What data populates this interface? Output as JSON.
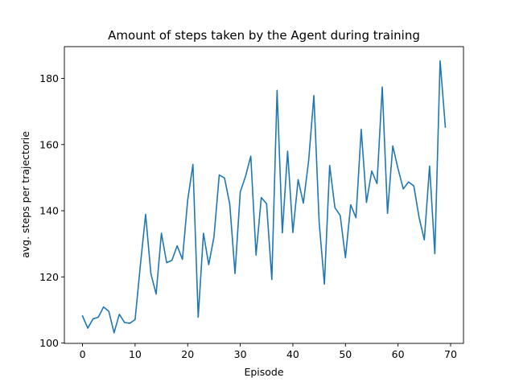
{
  "chart_data": {
    "type": "line",
    "title": "Amount of steps taken by the Agent during training",
    "xlabel": "Episode",
    "ylabel": "avg. steps per trajectorie",
    "xlim": [
      -3.45,
      72.45
    ],
    "ylim": [
      99.9,
      189.6
    ],
    "xticks": [
      0,
      10,
      20,
      30,
      40,
      50,
      60,
      70
    ],
    "yticks": [
      100,
      120,
      140,
      160,
      180
    ],
    "grid": false,
    "series": [
      {
        "name": "steps",
        "color": "#1f77b4",
        "x": [
          0,
          1,
          2,
          3,
          4,
          5,
          6,
          7,
          8,
          9,
          10,
          11,
          12,
          13,
          14,
          15,
          16,
          17,
          18,
          19,
          20,
          21,
          22,
          23,
          24,
          25,
          26,
          27,
          28,
          29,
          30,
          31,
          32,
          33,
          34,
          35,
          36,
          37,
          38,
          39,
          40,
          41,
          42,
          43,
          44,
          45,
          46,
          47,
          48,
          49,
          50,
          51,
          52,
          53,
          54,
          55,
          56,
          57,
          58,
          59,
          60,
          61,
          62,
          63,
          64,
          65,
          66,
          67,
          68,
          69
        ],
        "values": [
          108.2,
          104.5,
          107.3,
          107.8,
          110.9,
          109.6,
          103.1,
          108.7,
          106.2,
          106.0,
          107.1,
          123.5,
          138.9,
          121.0,
          114.8,
          133.2,
          124.3,
          125.0,
          129.4,
          125.3,
          143.2,
          154.0,
          107.8,
          133.2,
          123.7,
          132.1,
          150.8,
          149.9,
          142.0,
          121.0,
          145.7,
          150.4,
          156.5,
          126.6,
          144.0,
          142.1,
          119.2,
          176.4,
          133.3,
          158.0,
          133.4,
          149.4,
          142.3,
          155.1,
          174.8,
          136.5,
          117.8,
          153.7,
          140.9,
          138.6,
          125.8,
          141.8,
          137.9,
          164.6,
          142.5,
          152.0,
          148.2,
          177.4,
          139.2,
          159.6,
          152.7,
          146.6,
          148.7,
          147.5,
          138.0,
          131.2,
          153.5,
          127.0,
          185.3,
          165.3
        ]
      }
    ]
  }
}
